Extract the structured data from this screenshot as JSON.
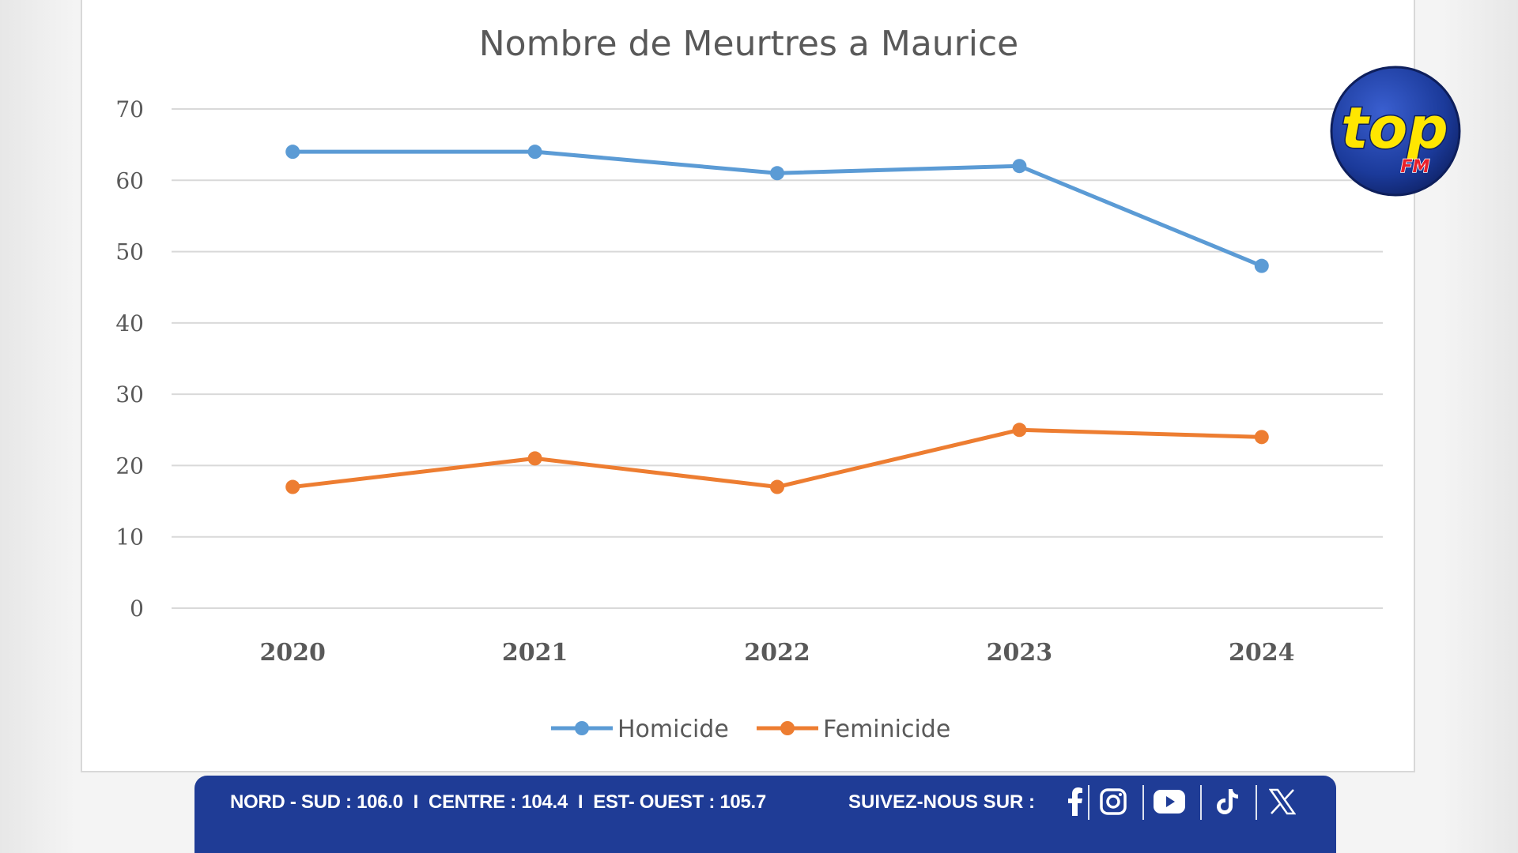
{
  "chart_data": {
    "type": "line",
    "title": "Nombre de Meurtres a Maurice",
    "categories": [
      "2020",
      "2021",
      "2022",
      "2023",
      "2024"
    ],
    "series": [
      {
        "name": "Homicide",
        "color": "#5b9bd5",
        "values": [
          64,
          64,
          61,
          62,
          48
        ]
      },
      {
        "name": "Feminicide",
        "color": "#ed7d31",
        "values": [
          17,
          21,
          17,
          25,
          24
        ]
      }
    ],
    "ylim": [
      0,
      70
    ],
    "yticks": [
      0,
      10,
      20,
      30,
      40,
      50,
      60,
      70
    ],
    "grid": true,
    "legend": "bottom-center"
  },
  "logo": {
    "text": "top",
    "subtext": "FM"
  },
  "footer": {
    "frequencies": [
      {
        "label": "NORD - SUD : 106.0"
      },
      {
        "label": "CENTRE : 104.4"
      },
      {
        "label": "EST- OUEST : 105.7"
      }
    ],
    "separator": "I",
    "follow_label": "SUIVEZ-NOUS SUR :",
    "social": [
      "facebook-icon",
      "instagram-icon",
      "youtube-icon",
      "tiktok-icon",
      "x-icon"
    ]
  }
}
